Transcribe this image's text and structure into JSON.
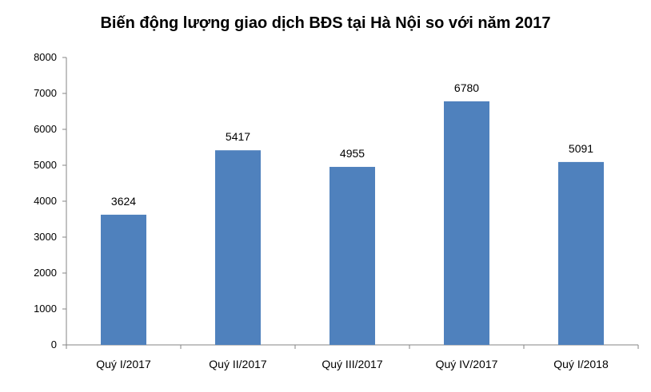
{
  "chart_data": {
    "type": "bar",
    "title": "Biến động lượng giao dịch BĐS tại Hà Nội so với năm 2017",
    "categories": [
      "Quý I/2017",
      "Quý II/2017",
      "Quý III/2017",
      "Quý IV/2017",
      "Quý I/2018"
    ],
    "values": [
      3624,
      5417,
      4955,
      6780,
      5091
    ],
    "ylim": [
      0,
      8000
    ],
    "yticks": [
      0,
      1000,
      2000,
      3000,
      4000,
      5000,
      6000,
      7000,
      8000
    ],
    "xlabel": "",
    "ylabel": "",
    "grid": false,
    "legend": "none",
    "bar_color": "#4f81bd"
  }
}
